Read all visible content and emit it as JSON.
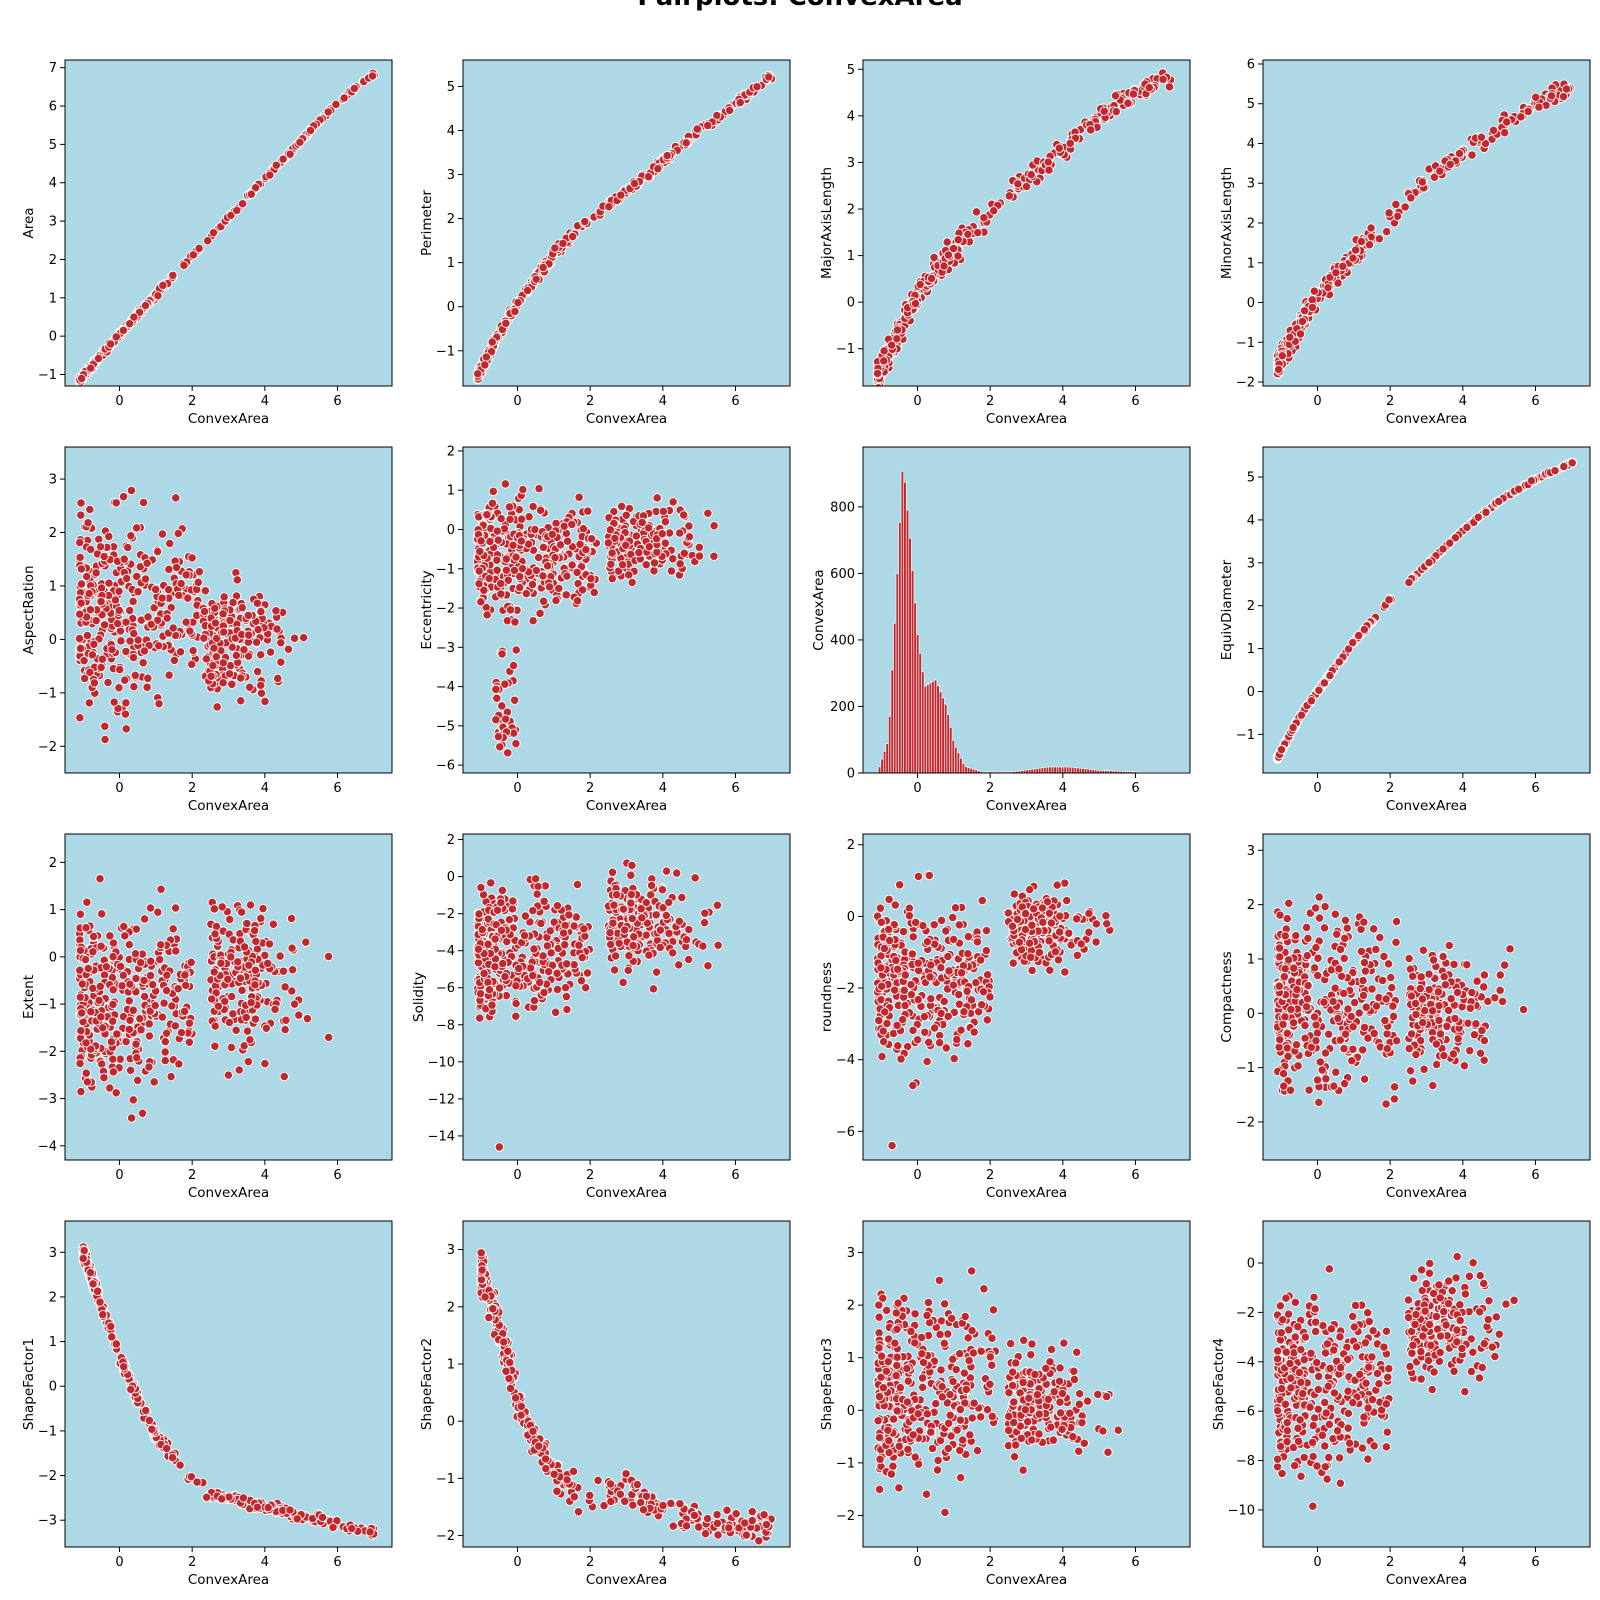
{
  "figure": {
    "title": "Pairplots: ConvexArea"
  },
  "chart_data": [
    {
      "type": "scatter",
      "title": "",
      "xlabel": "ConvexArea",
      "ylabel": "Area",
      "xlim": [
        -1.5,
        7.5
      ],
      "ylim": [
        -1.3,
        7.2
      ],
      "xticks": [
        0,
        2,
        4,
        6
      ],
      "yticks": [
        -1,
        0,
        1,
        2,
        3,
        4,
        5,
        6,
        7
      ],
      "grid": false,
      "pattern": "linear",
      "line_points": [
        [
          -1.1,
          -1.15
        ],
        [
          0,
          0.05
        ],
        [
          2,
          2.1
        ],
        [
          4,
          4.1
        ],
        [
          6,
          6.1
        ],
        [
          7.05,
          6.85
        ]
      ]
    },
    {
      "type": "scatter",
      "title": "",
      "xlabel": "ConvexArea",
      "ylabel": "Perimeter",
      "xlim": [
        -1.5,
        7.5
      ],
      "ylim": [
        -1.8,
        5.6
      ],
      "xticks": [
        0,
        2,
        4,
        6
      ],
      "yticks": [
        -1,
        0,
        1,
        2,
        3,
        4,
        5
      ],
      "grid": false,
      "pattern": "curve",
      "line_points": [
        [
          -1.1,
          -1.6
        ],
        [
          -0.5,
          -0.6
        ],
        [
          0,
          0.1
        ],
        [
          1,
          1.2
        ],
        [
          2,
          2.0
        ],
        [
          3,
          2.6
        ],
        [
          4,
          3.3
        ],
        [
          5,
          4.0
        ],
        [
          6,
          4.6
        ],
        [
          7,
          5.25
        ]
      ]
    },
    {
      "type": "scatter",
      "title": "",
      "xlabel": "ConvexArea",
      "ylabel": "MajorAxisLength",
      "xlim": [
        -1.5,
        7.5
      ],
      "ylim": [
        -1.8,
        5.2
      ],
      "xticks": [
        0,
        2,
        4,
        6
      ],
      "yticks": [
        -1,
        0,
        1,
        2,
        3,
        4,
        5
      ],
      "grid": false,
      "pattern": "band",
      "line_points": [
        [
          -1.1,
          -1.6
        ],
        [
          -0.5,
          -0.6
        ],
        [
          0,
          0.2
        ],
        [
          1,
          1.1
        ],
        [
          2,
          1.9
        ],
        [
          3,
          2.6
        ],
        [
          4,
          3.3
        ],
        [
          5,
          4.0
        ],
        [
          6,
          4.5
        ],
        [
          7,
          4.85
        ]
      ]
    },
    {
      "type": "scatter",
      "title": "",
      "xlabel": "ConvexArea",
      "ylabel": "MinorAxisLength",
      "xlim": [
        -1.5,
        7.5
      ],
      "ylim": [
        -2.1,
        6.1
      ],
      "xticks": [
        0,
        2,
        4,
        6
      ],
      "yticks": [
        -2,
        -1,
        0,
        1,
        2,
        3,
        4,
        5,
        6
      ],
      "grid": false,
      "pattern": "band",
      "line_points": [
        [
          -1.1,
          -1.6
        ],
        [
          -0.5,
          -0.6
        ],
        [
          0,
          0.2
        ],
        [
          1,
          1.2
        ],
        [
          2,
          2.1
        ],
        [
          3,
          3.1
        ],
        [
          4,
          3.8
        ],
        [
          5,
          4.4
        ],
        [
          6,
          5.0
        ],
        [
          7,
          5.4
        ]
      ]
    },
    {
      "type": "scatter",
      "title": "",
      "xlabel": "ConvexArea",
      "ylabel": "AspectRation",
      "xlim": [
        -1.5,
        7.5
      ],
      "ylim": [
        -2.5,
        3.6
      ],
      "xticks": [
        0,
        2,
        4,
        6
      ],
      "yticks": [
        -2,
        -1,
        0,
        1,
        2,
        3
      ],
      "grid": false,
      "pattern": "two-cluster",
      "main": {
        "x": [
          -1.1,
          2.2
        ],
        "y": [
          -2.3,
          3.4
        ]
      },
      "right": {
        "x": [
          2.3,
          7.0
        ],
        "y": [
          -1.4,
          1.4
        ]
      }
    },
    {
      "type": "scatter",
      "title": "",
      "xlabel": "ConvexArea",
      "ylabel": "Eccentricity",
      "xlim": [
        -1.5,
        7.5
      ],
      "ylim": [
        -6.2,
        2.1
      ],
      "xticks": [
        0,
        2,
        4,
        6
      ],
      "yticks": [
        -6,
        -5,
        -4,
        -3,
        -2,
        -1,
        0,
        1,
        2
      ],
      "grid": false,
      "pattern": "two-cluster",
      "main": {
        "x": [
          -1.1,
          2.2
        ],
        "y": [
          -3.0,
          1.7
        ]
      },
      "tail": {
        "x": [
          -0.6,
          0.0
        ],
        "y": [
          -5.8,
          -3.0
        ]
      },
      "right": {
        "x": [
          2.5,
          7.0
        ],
        "y": [
          -1.7,
          1.1
        ]
      }
    },
    {
      "type": "bar",
      "title": "",
      "xlabel": "ConvexArea",
      "ylabel": "ConvexArea",
      "xlim": [
        -1.5,
        7.5
      ],
      "ylim": [
        0,
        980
      ],
      "xticks": [
        0,
        2,
        4,
        6
      ],
      "yticks": [
        0,
        200,
        400,
        600,
        800
      ],
      "grid": false,
      "histogram_peaks": [
        [
          -1.1,
          0
        ],
        [
          -0.8,
          100
        ],
        [
          -0.6,
          500
        ],
        [
          -0.4,
          940
        ],
        [
          -0.2,
          700
        ],
        [
          0,
          420
        ],
        [
          0.2,
          260
        ],
        [
          0.5,
          280
        ],
        [
          0.8,
          200
        ],
        [
          1.0,
          90
        ],
        [
          1.3,
          20
        ],
        [
          1.8,
          3
        ],
        [
          2.6,
          3
        ],
        [
          3.6,
          18
        ],
        [
          4.2,
          18
        ],
        [
          5,
          8
        ],
        [
          6.2,
          2
        ]
      ]
    },
    {
      "type": "scatter",
      "title": "",
      "xlabel": "ConvexArea",
      "ylabel": "EquivDiameter",
      "xlim": [
        -1.5,
        7.5
      ],
      "ylim": [
        -1.9,
        5.7
      ],
      "xticks": [
        0,
        2,
        4,
        6
      ],
      "yticks": [
        -1,
        0,
        1,
        2,
        3,
        4,
        5
      ],
      "grid": false,
      "pattern": "curve-thin",
      "line_points": [
        [
          -1.1,
          -1.55
        ],
        [
          -0.5,
          -0.6
        ],
        [
          0,
          0.0
        ],
        [
          1,
          1.15
        ],
        [
          2,
          2.15
        ],
        [
          3,
          2.95
        ],
        [
          4,
          3.75
        ],
        [
          5,
          4.45
        ],
        [
          6,
          4.95
        ],
        [
          7.05,
          5.35
        ]
      ]
    },
    {
      "type": "scatter",
      "title": "",
      "xlabel": "ConvexArea",
      "ylabel": "Extent",
      "xlim": [
        -1.5,
        7.5
      ],
      "ylim": [
        -4.3,
        2.6
      ],
      "xticks": [
        0,
        2,
        4,
        6
      ],
      "yticks": [
        -4,
        -3,
        -2,
        -1,
        0,
        1,
        2
      ],
      "grid": false,
      "pattern": "two-cluster",
      "main": {
        "x": [
          -1.1,
          2.0
        ],
        "y": [
          -4.0,
          2.3
        ]
      },
      "right": {
        "x": [
          2.5,
          7.0
        ],
        "y": [
          -2.9,
          2.2
        ]
      }
    },
    {
      "type": "scatter",
      "title": "",
      "xlabel": "ConvexArea",
      "ylabel": "Solidity",
      "xlim": [
        -1.5,
        7.5
      ],
      "ylim": [
        -15.3,
        2.3
      ],
      "xticks": [
        0,
        2,
        4,
        6
      ],
      "yticks": [
        -14,
        -12,
        -10,
        -8,
        -6,
        -4,
        -2,
        0,
        2
      ],
      "grid": false,
      "pattern": "two-cluster",
      "main": {
        "x": [
          -1.1,
          2.0
        ],
        "y": [
          -9.5,
          1.5
        ]
      },
      "outlier": [
        -0.5,
        -14.6
      ],
      "right": {
        "x": [
          2.5,
          7.0
        ],
        "y": [
          -6.4,
          1.5
        ]
      }
    },
    {
      "type": "scatter",
      "title": "",
      "xlabel": "ConvexArea",
      "ylabel": "roundness",
      "xlim": [
        -1.5,
        7.5
      ],
      "ylim": [
        -6.8,
        2.3
      ],
      "xticks": [
        0,
        2,
        4,
        6
      ],
      "yticks": [
        -6,
        -4,
        -2,
        0,
        2
      ],
      "grid": false,
      "pattern": "two-cluster",
      "main": {
        "x": [
          -1.1,
          2.0
        ],
        "y": [
          -5.3,
          1.9
        ]
      },
      "outlier": [
        -0.7,
        -6.4
      ],
      "right": {
        "x": [
          2.5,
          7.0
        ],
        "y": [
          -1.9,
          1.2
        ]
      }
    },
    {
      "type": "scatter",
      "title": "",
      "xlabel": "ConvexArea",
      "ylabel": "Compactness",
      "xlim": [
        -1.5,
        7.5
      ],
      "ylim": [
        -2.7,
        3.3
      ],
      "xticks": [
        0,
        2,
        4,
        6
      ],
      "yticks": [
        -2,
        -1,
        0,
        1,
        2,
        3
      ],
      "grid": false,
      "pattern": "two-cluster",
      "main": {
        "x": [
          -1.1,
          2.2
        ],
        "y": [
          -2.6,
          3.0
        ]
      },
      "right": {
        "x": [
          2.5,
          7.0
        ],
        "y": [
          -1.4,
          1.5
        ]
      }
    },
    {
      "type": "scatter",
      "title": "",
      "xlabel": "ConvexArea",
      "ylabel": "ShapeFactor1",
      "xlim": [
        -1.5,
        7.5
      ],
      "ylim": [
        -3.6,
        3.7
      ],
      "xticks": [
        0,
        2,
        4,
        6
      ],
      "yticks": [
        -3,
        -2,
        -1,
        0,
        1,
        2,
        3
      ],
      "grid": false,
      "pattern": "decay",
      "line_points": [
        [
          -1.0,
          3.0
        ],
        [
          -0.5,
          1.8
        ],
        [
          0,
          0.7
        ],
        [
          0.5,
          -0.3
        ],
        [
          1,
          -1.1
        ],
        [
          1.8,
          -1.9
        ],
        [
          2.5,
          -2.4
        ],
        [
          4,
          -2.7
        ],
        [
          5.5,
          -3.0
        ],
        [
          7,
          -3.3
        ]
      ]
    },
    {
      "type": "scatter",
      "title": "",
      "xlabel": "ConvexArea",
      "ylabel": "ShapeFactor2",
      "xlim": [
        -1.5,
        7.5
      ],
      "ylim": [
        -2.2,
        3.5
      ],
      "xticks": [
        0,
        2,
        4,
        6
      ],
      "yticks": [
        -2,
        -1,
        0,
        1,
        2,
        3
      ],
      "grid": false,
      "pattern": "decay-wide",
      "line_points": [
        [
          -1.0,
          2.6
        ],
        [
          -0.5,
          1.6
        ],
        [
          0,
          0.4
        ],
        [
          0.5,
          -0.4
        ],
        [
          1,
          -0.9
        ],
        [
          2,
          -1.3
        ],
        [
          3,
          -1.2
        ],
        [
          4,
          -1.5
        ],
        [
          5,
          -1.7
        ],
        [
          6,
          -1.8
        ],
        [
          7,
          -1.85
        ]
      ]
    },
    {
      "type": "scatter",
      "title": "",
      "xlabel": "ConvexArea",
      "ylabel": "ShapeFactor3",
      "xlim": [
        -1.5,
        7.5
      ],
      "ylim": [
        -2.6,
        3.6
      ],
      "xticks": [
        0,
        2,
        4,
        6
      ],
      "yticks": [
        -2,
        -1,
        0,
        1,
        2,
        3
      ],
      "grid": false,
      "pattern": "two-cluster",
      "main": {
        "x": [
          -1.1,
          2.2
        ],
        "y": [
          -2.4,
          3.3
        ]
      },
      "right": {
        "x": [
          2.5,
          7.0
        ],
        "y": [
          -1.4,
          1.6
        ]
      }
    },
    {
      "type": "scatter",
      "title": "",
      "xlabel": "ConvexArea",
      "ylabel": "ShapeFactor4",
      "xlim": [
        -1.5,
        7.5
      ],
      "ylim": [
        -11.5,
        1.7
      ],
      "xticks": [
        0,
        2,
        4,
        6
      ],
      "yticks": [
        -10,
        -8,
        -6,
        -4,
        -2,
        0
      ],
      "grid": false,
      "pattern": "two-cluster",
      "main": {
        "x": [
          -1.1,
          2.0
        ],
        "y": [
          -10.8,
          1.0
        ]
      },
      "right": {
        "x": [
          2.5,
          7.0
        ],
        "y": [
          -6.0,
          1.0
        ]
      }
    }
  ],
  "style": {
    "axes_bg": "#add8e6",
    "marker_fill": "#c0282e",
    "marker_edge": "#ffffff"
  }
}
